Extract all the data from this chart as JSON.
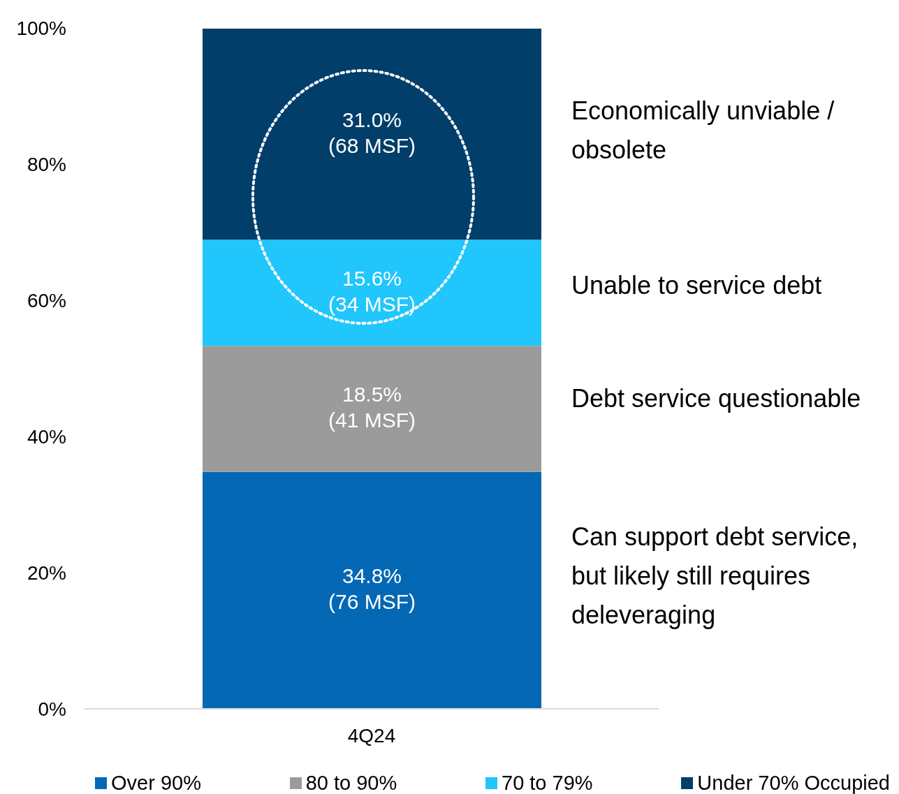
{
  "chart_data": {
    "type": "bar",
    "stacked": true,
    "categories": [
      "4Q24"
    ],
    "series": [
      {
        "name": "Over 90%",
        "color": "#0468b4",
        "values": [
          34.8
        ],
        "value_labels": [
          "34.8%\n(76 MSF)"
        ]
      },
      {
        "name": "80 to 90%",
        "color": "#9b9b9b",
        "values": [
          18.5
        ],
        "value_labels": [
          "18.5%\n(41 MSF)"
        ]
      },
      {
        "name": "70 to 79%",
        "color": "#20c6fc",
        "values": [
          15.6
        ],
        "value_labels": [
          "15.6%\n(34 MSF)"
        ]
      },
      {
        "name": "Under 70% Occupied",
        "color": "#023e6a",
        "values": [
          31.0
        ],
        "value_labels": [
          "31.0%\n(68 MSF)"
        ]
      }
    ],
    "ylim": [
      0,
      100
    ],
    "yticks": [
      {
        "value": 0,
        "label": "0%"
      },
      {
        "value": 20,
        "label": "20%"
      },
      {
        "value": 40,
        "label": "40%"
      },
      {
        "value": 60,
        "label": "60%"
      },
      {
        "value": 80,
        "label": "80%"
      },
      {
        "value": 100,
        "label": "100%"
      }
    ],
    "annotations": [
      "Economically unviable / obsolete",
      "Unable to service debt",
      "Debt service questionable",
      "Can support debt service, but likely still requires deleveraging"
    ],
    "grid": false,
    "legend": "bottom"
  }
}
